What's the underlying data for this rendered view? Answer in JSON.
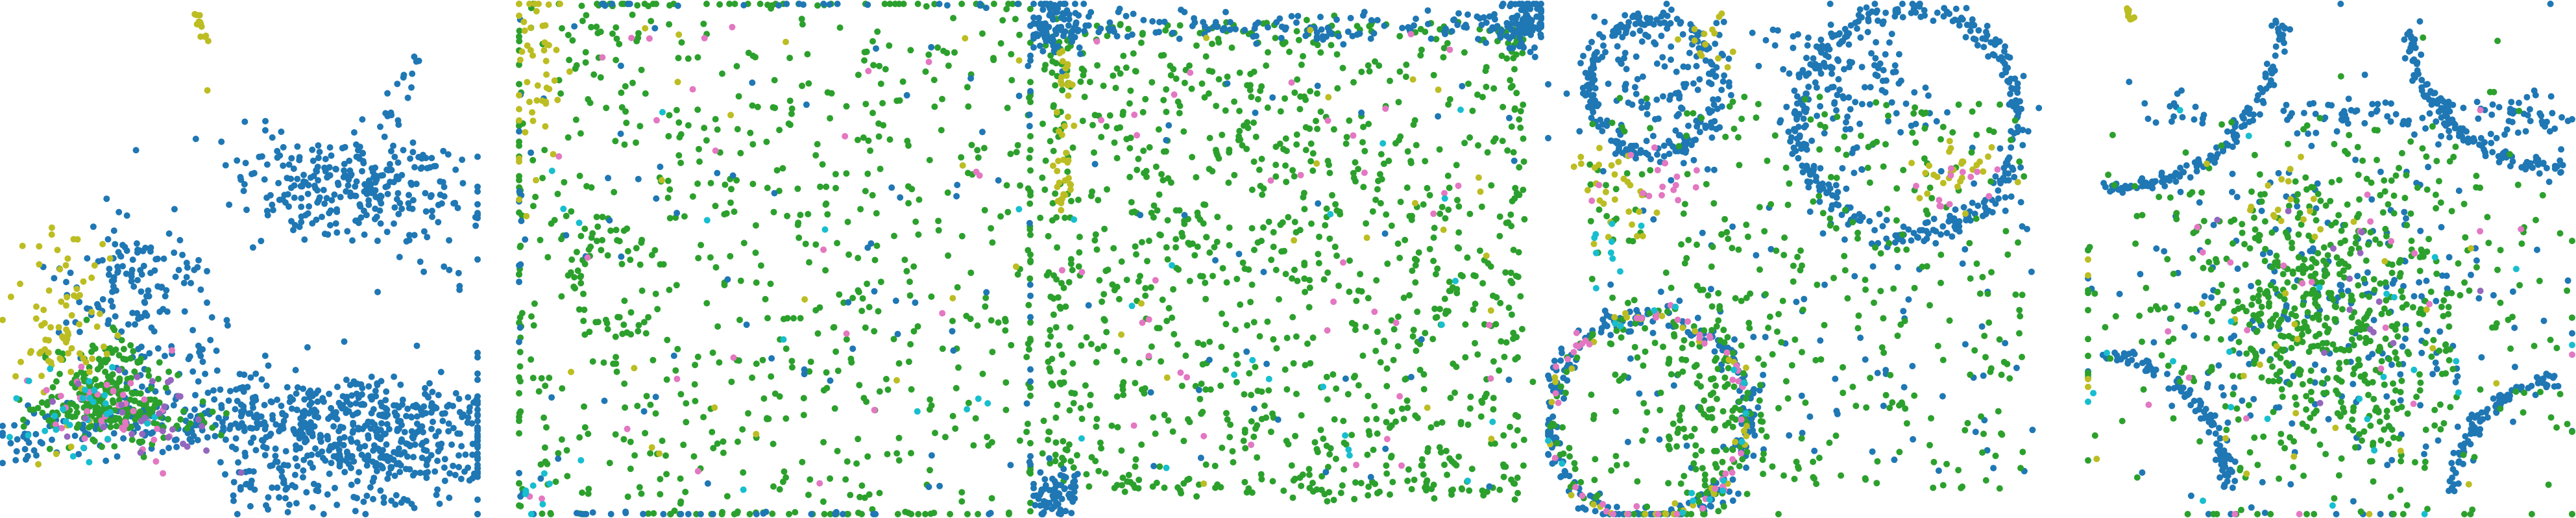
{
  "figure": {
    "panel_count": 5,
    "axes_visible": false,
    "background": "#ffffff"
  },
  "palette": {
    "blue": "#1f77b4",
    "green": "#2ca02c",
    "olive": "#bcbd22",
    "pink": "#e377c2",
    "cyan": "#17becf",
    "purple": "#9467bd"
  },
  "chart_data": [
    {
      "type": "scatter",
      "title": "",
      "xlabel": "",
      "ylabel": "",
      "xlim": [
        0,
        1
      ],
      "ylim": [
        0,
        1
      ],
      "grid": false,
      "legend": "none",
      "series": [
        {
          "color": "blue",
          "clusters": [
            {
              "shape": "blob",
              "cx": 0.76,
              "cy": 0.64,
              "rx": 0.12,
              "ry": 0.05,
              "n": 240
            },
            {
              "shape": "blob",
              "cx": 0.77,
              "cy": 0.14,
              "rx": 0.14,
              "ry": 0.06,
              "n": 420
            },
            {
              "shape": "band",
              "x0": 0.0,
              "y0": 0.16,
              "x1": 0.98,
              "y1": 0.22,
              "spread": 0.03,
              "n": 260
            },
            {
              "shape": "blob",
              "cx": 0.28,
              "cy": 0.46,
              "rx": 0.08,
              "ry": 0.07,
              "n": 130
            },
            {
              "shape": "band",
              "x0": 0.45,
              "y0": 0.72,
              "x1": 0.98,
              "y1": 0.46,
              "spread": 0.05,
              "n": 60
            },
            {
              "shape": "band",
              "x0": 0.8,
              "y0": 0.76,
              "x1": 0.88,
              "y1": 0.9,
              "spread": 0.01,
              "n": 16
            },
            {
              "shape": "blob",
              "cx": 0.4,
              "cy": 0.26,
              "rx": 0.1,
              "ry": 0.06,
              "n": 80
            },
            {
              "shape": "blob",
              "cx": 0.56,
              "cy": 0.06,
              "rx": 0.06,
              "ry": 0.03,
              "n": 40
            }
          ]
        },
        {
          "color": "green",
          "clusters": [
            {
              "shape": "blob",
              "cx": 0.22,
              "cy": 0.24,
              "rx": 0.06,
              "ry": 0.06,
              "n": 200
            },
            {
              "shape": "band",
              "x0": 0.05,
              "y0": 0.2,
              "x1": 0.45,
              "y1": 0.18,
              "spread": 0.02,
              "n": 60
            }
          ]
        },
        {
          "color": "olive",
          "clusters": [
            {
              "shape": "band",
              "x0": 0.41,
              "y0": 0.99,
              "x1": 0.43,
              "y1": 0.92,
              "spread": 0.004,
              "n": 14
            },
            {
              "shape": "blob",
              "cx": 0.12,
              "cy": 0.36,
              "rx": 0.06,
              "ry": 0.12,
              "n": 80
            },
            {
              "shape": "blob",
              "cx": 0.43,
              "cy": 0.83,
              "rx": 0.003,
              "ry": 0.003,
              "n": 1
            }
          ]
        },
        {
          "color": "pink",
          "clusters": [
            {
              "shape": "blob",
              "cx": 0.25,
              "cy": 0.22,
              "rx": 0.07,
              "ry": 0.05,
              "n": 40
            }
          ]
        },
        {
          "color": "cyan",
          "clusters": [
            {
              "shape": "blob",
              "cx": 0.18,
              "cy": 0.21,
              "rx": 0.07,
              "ry": 0.04,
              "n": 30
            }
          ]
        },
        {
          "color": "purple",
          "clusters": [
            {
              "shape": "blob",
              "cx": 0.3,
              "cy": 0.2,
              "rx": 0.08,
              "ry": 0.04,
              "n": 30
            }
          ]
        }
      ]
    },
    {
      "type": "scatter",
      "title": "",
      "xlabel": "",
      "ylabel": "",
      "xlim": [
        0,
        1
      ],
      "ylim": [
        0,
        1
      ],
      "grid": false,
      "legend": "none",
      "series": [
        {
          "color": "green",
          "clusters": [
            {
              "shape": "uniform",
              "x0": 0.02,
              "y0": 0.02,
              "x1": 0.98,
              "y1": 0.98,
              "n": 560
            },
            {
              "shape": "rect",
              "x0": 0.0,
              "y0": 0.0,
              "x1": 1.0,
              "y1": 1.0,
              "spread": 0.004,
              "n": 190
            },
            {
              "shape": "ring",
              "cx": 0.2,
              "cy": 0.45,
              "r": 0.09,
              "spread": 0.01,
              "n": 40
            }
          ]
        },
        {
          "color": "blue",
          "clusters": [
            {
              "shape": "uniform",
              "x0": 0.02,
              "y0": 0.02,
              "x1": 0.98,
              "y1": 0.98,
              "n": 60
            },
            {
              "shape": "rect",
              "x0": 0.0,
              "y0": 0.0,
              "x1": 1.0,
              "y1": 1.0,
              "spread": 0.004,
              "n": 80
            }
          ]
        },
        {
          "color": "olive",
          "clusters": [
            {
              "shape": "blob",
              "cx": 0.03,
              "cy": 0.85,
              "rx": 0.03,
              "ry": 0.12,
              "n": 50
            },
            {
              "shape": "uniform",
              "x0": 0.02,
              "y0": 0.02,
              "x1": 0.98,
              "y1": 0.98,
              "n": 20
            }
          ]
        },
        {
          "color": "pink",
          "clusters": [
            {
              "shape": "uniform",
              "x0": 0.02,
              "y0": 0.02,
              "x1": 0.98,
              "y1": 0.98,
              "n": 26
            }
          ]
        },
        {
          "color": "cyan",
          "clusters": [
            {
              "shape": "uniform",
              "x0": 0.02,
              "y0": 0.02,
              "x1": 0.98,
              "y1": 0.98,
              "n": 14
            },
            {
              "shape": "blob",
              "cx": 0.03,
              "cy": 0.04,
              "rx": 0.02,
              "ry": 0.03,
              "n": 8
            }
          ]
        }
      ]
    },
    {
      "type": "scatter",
      "title": "",
      "xlabel": "",
      "ylabel": "",
      "xlim": [
        0,
        1
      ],
      "ylim": [
        0,
        1
      ],
      "grid": false,
      "legend": "none",
      "series": [
        {
          "color": "green",
          "clusters": [
            {
              "shape": "uniform",
              "x0": 0.05,
              "y0": 0.06,
              "x1": 0.93,
              "y1": 0.93,
              "n": 820
            },
            {
              "shape": "rect",
              "x0": 0.04,
              "y0": 0.05,
              "x1": 0.95,
              "y1": 0.95,
              "spread": 0.012,
              "n": 300
            }
          ]
        },
        {
          "color": "blue",
          "clusters": [
            {
              "shape": "blob",
              "cx": 0.04,
              "cy": 0.96,
              "rx": 0.03,
              "ry": 0.03,
              "n": 90
            },
            {
              "shape": "blob",
              "cx": 0.97,
              "cy": 0.96,
              "rx": 0.03,
              "ry": 0.03,
              "n": 90
            },
            {
              "shape": "blob",
              "cx": 0.04,
              "cy": 0.05,
              "rx": 0.025,
              "ry": 0.03,
              "n": 70
            },
            {
              "shape": "band",
              "x0": 0.04,
              "y0": 0.955,
              "x1": 0.96,
              "y1": 0.955,
              "spread": 0.015,
              "n": 140
            },
            {
              "shape": "uniform",
              "x0": 0.05,
              "y0": 0.05,
              "x1": 0.95,
              "y1": 0.95,
              "n": 40
            }
          ]
        },
        {
          "color": "olive",
          "clusters": [
            {
              "shape": "band",
              "x0": 0.06,
              "y0": 0.9,
              "x1": 0.06,
              "y1": 0.6,
              "spread": 0.01,
              "n": 40
            },
            {
              "shape": "uniform",
              "x0": 0.05,
              "y0": 0.05,
              "x1": 0.95,
              "y1": 0.95,
              "n": 20
            }
          ]
        },
        {
          "color": "pink",
          "clusters": [
            {
              "shape": "uniform",
              "x0": 0.05,
              "y0": 0.05,
              "x1": 0.95,
              "y1": 0.95,
              "n": 40
            }
          ]
        },
        {
          "color": "cyan",
          "clusters": [
            {
              "shape": "uniform",
              "x0": 0.05,
              "y0": 0.05,
              "x1": 0.95,
              "y1": 0.95,
              "n": 20
            }
          ]
        }
      ]
    },
    {
      "type": "scatter",
      "title": "",
      "xlabel": "",
      "ylabel": "",
      "xlim": [
        0,
        1
      ],
      "ylim": [
        0,
        1
      ],
      "grid": false,
      "legend": "none",
      "series": [
        {
          "color": "blue",
          "clusters": [
            {
              "shape": "ring",
              "cx": 0.21,
              "cy": 0.84,
              "r": 0.13,
              "spread": 0.01,
              "n": 200
            },
            {
              "shape": "ring",
              "cx": 0.72,
              "cy": 0.77,
              "r": 0.22,
              "spread": 0.012,
              "n": 340
            },
            {
              "shape": "ring",
              "cx": 0.2,
              "cy": 0.19,
              "r": 0.2,
              "spread": 0.012,
              "n": 240
            },
            {
              "shape": "blob",
              "cx": 0.22,
              "cy": 0.85,
              "rx": 0.08,
              "ry": 0.06,
              "n": 90
            },
            {
              "shape": "blob",
              "cx": 0.6,
              "cy": 0.84,
              "rx": 0.06,
              "ry": 0.06,
              "n": 80
            },
            {
              "shape": "uniform",
              "x0": 0.1,
              "y0": 0.08,
              "x1": 0.98,
              "y1": 0.95,
              "n": 160
            }
          ]
        },
        {
          "color": "green",
          "clusters": [
            {
              "shape": "uniform",
              "x0": 0.08,
              "y0": 0.05,
              "x1": 0.95,
              "y1": 0.82,
              "n": 380
            },
            {
              "shape": "blob",
              "cx": 0.32,
              "cy": 0.2,
              "rx": 0.05,
              "ry": 0.12,
              "n": 100
            },
            {
              "shape": "ring",
              "cx": 0.2,
              "cy": 0.19,
              "r": 0.19,
              "spread": 0.012,
              "n": 60
            }
          ]
        },
        {
          "color": "olive",
          "clusters": [
            {
              "shape": "blob",
              "cx": 0.14,
              "cy": 0.62,
              "rx": 0.05,
              "ry": 0.06,
              "n": 30
            },
            {
              "shape": "blob",
              "cx": 0.8,
              "cy": 0.67,
              "rx": 0.06,
              "ry": 0.03,
              "n": 28
            },
            {
              "shape": "blob",
              "cx": 0.33,
              "cy": 0.92,
              "rx": 0.03,
              "ry": 0.03,
              "n": 14
            },
            {
              "shape": "ring",
              "cx": 0.2,
              "cy": 0.19,
              "r": 0.2,
              "spread": 0.012,
              "n": 40
            }
          ]
        },
        {
          "color": "pink",
          "clusters": [
            {
              "shape": "ring",
              "cx": 0.2,
              "cy": 0.19,
              "r": 0.2,
              "spread": 0.01,
              "n": 50
            },
            {
              "shape": "blob",
              "cx": 0.2,
              "cy": 0.66,
              "rx": 0.05,
              "ry": 0.03,
              "n": 16
            },
            {
              "shape": "blob",
              "cx": 0.82,
              "cy": 0.65,
              "rx": 0.05,
              "ry": 0.03,
              "n": 12
            }
          ]
        },
        {
          "color": "cyan",
          "clusters": [
            {
              "shape": "blob",
              "cx": 0.12,
              "cy": 0.52,
              "rx": 0.03,
              "ry": 0.04,
              "n": 10
            },
            {
              "shape": "ring",
              "cx": 0.2,
              "cy": 0.19,
              "r": 0.2,
              "spread": 0.01,
              "n": 16
            }
          ]
        }
      ]
    },
    {
      "type": "scatter",
      "title": "",
      "xlabel": "",
      "ylabel": "",
      "xlim": [
        0,
        1
      ],
      "ylim": [
        0,
        1
      ],
      "grid": false,
      "legend": "none",
      "series": [
        {
          "color": "blue",
          "clusters": [
            {
              "shape": "arc",
              "cx": 0.06,
              "cy": 0.98,
              "r": 0.34,
              "a0": 265,
              "a1": 358,
              "spread": 0.008,
              "n": 130
            },
            {
              "shape": "arc",
              "cx": 0.96,
              "cy": 0.98,
              "r": 0.3,
              "a0": 185,
              "a1": 275,
              "spread": 0.008,
              "n": 120
            },
            {
              "shape": "arc",
              "cx": 0.02,
              "cy": 0.04,
              "r": 0.27,
              "a0": 2,
              "a1": 88,
              "spread": 0.008,
              "n": 110
            },
            {
              "shape": "arc",
              "cx": 0.98,
              "cy": 0.03,
              "r": 0.23,
              "a0": 92,
              "a1": 178,
              "spread": 0.008,
              "n": 90
            },
            {
              "shape": "band",
              "x0": 0.42,
              "y0": 0.78,
              "x1": 0.92,
              "y1": 0.78,
              "spread": 0.02,
              "n": 80
            },
            {
              "shape": "blob",
              "cx": 0.94,
              "cy": 0.78,
              "rx": 0.03,
              "ry": 0.03,
              "n": 20
            },
            {
              "shape": "blob",
              "cx": 0.18,
              "cy": 0.78,
              "rx": 0.04,
              "ry": 0.03,
              "n": 16
            },
            {
              "shape": "blob",
              "cx": 0.5,
              "cy": 0.38,
              "rx": 0.22,
              "ry": 0.19,
              "n": 260
            }
          ]
        },
        {
          "color": "green",
          "clusters": [
            {
              "shape": "blob",
              "cx": 0.5,
              "cy": 0.38,
              "rx": 0.16,
              "ry": 0.16,
              "n": 560
            },
            {
              "shape": "blob",
              "cx": 0.5,
              "cy": 0.38,
              "rx": 0.3,
              "ry": 0.24,
              "n": 160
            }
          ]
        },
        {
          "color": "olive",
          "clusters": [
            {
              "shape": "band",
              "x0": 0.08,
              "y0": 0.99,
              "x1": 0.09,
              "y1": 0.97,
              "spread": 0.003,
              "n": 14
            },
            {
              "shape": "blob",
              "cx": 0.4,
              "cy": 0.62,
              "rx": 0.04,
              "ry": 0.04,
              "n": 16
            },
            {
              "shape": "blob",
              "cx": 0.45,
              "cy": 0.35,
              "rx": 0.2,
              "ry": 0.18,
              "n": 30
            }
          ]
        },
        {
          "color": "pink",
          "clusters": [
            {
              "shape": "blob",
              "cx": 0.48,
              "cy": 0.36,
              "rx": 0.22,
              "ry": 0.2,
              "n": 26
            }
          ]
        },
        {
          "color": "cyan",
          "clusters": [
            {
              "shape": "blob",
              "cx": 0.5,
              "cy": 0.36,
              "rx": 0.25,
              "ry": 0.22,
              "n": 26
            }
          ]
        },
        {
          "color": "purple",
          "clusters": [
            {
              "shape": "blob",
              "cx": 0.5,
              "cy": 0.4,
              "rx": 0.1,
              "ry": 0.1,
              "n": 14
            }
          ]
        }
      ]
    }
  ]
}
